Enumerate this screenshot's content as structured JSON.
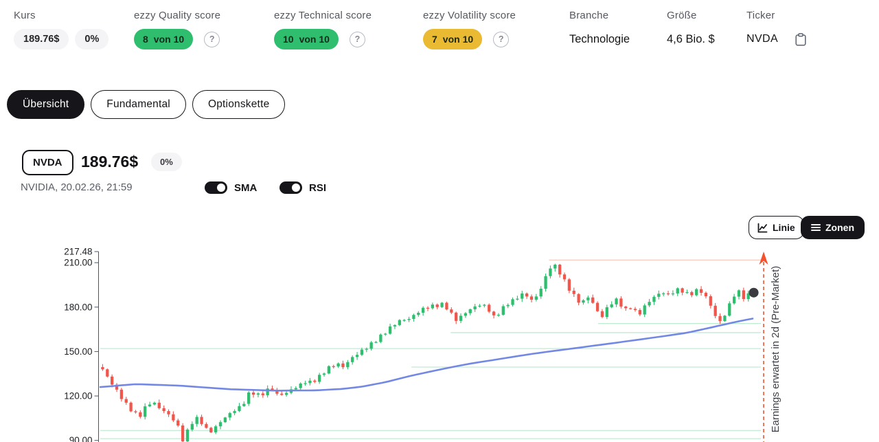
{
  "header": {
    "stats": [
      {
        "id": "kurs",
        "label": "Kurs",
        "kind": "price",
        "price": "189.76$",
        "change": "0%"
      },
      {
        "id": "quality",
        "label": "ezzy Quality score",
        "kind": "score",
        "value": "8",
        "suffix": "von 10",
        "color": "#2EBE6E",
        "help_icon": "?"
      },
      {
        "id": "technical",
        "label": "ezzy Technical score",
        "kind": "score",
        "value": "10",
        "suffix": "von 10",
        "color": "#2EBE6E",
        "help_icon": "?"
      },
      {
        "id": "volatility",
        "label": "ezzy Volatility score",
        "kind": "score",
        "value": "7",
        "suffix": "von 10",
        "color": "#EABA33",
        "help_icon": "?"
      },
      {
        "id": "branche",
        "label": "Branche",
        "kind": "text",
        "value": "Technologie"
      },
      {
        "id": "groesse",
        "label": "Größe",
        "kind": "text",
        "value": "4,6 Bio. $"
      },
      {
        "id": "ticker",
        "label": "Ticker",
        "kind": "ticker",
        "value": "NVDA"
      }
    ]
  },
  "tabs": [
    {
      "id": "uebersicht",
      "label": "Übersicht",
      "active": true
    },
    {
      "id": "fundamental",
      "label": "Fundamental",
      "active": false
    },
    {
      "id": "optionskette",
      "label": "Optionskette",
      "active": false
    }
  ],
  "symbol": {
    "ticker": "NVDA",
    "price": "189.76$",
    "change": "0%",
    "subtitle": "NVIDIA, 20.02.26, 21:59"
  },
  "toggles": [
    {
      "id": "sma",
      "label": "SMA",
      "on": true
    },
    {
      "id": "rsi",
      "label": "RSI",
      "on": true
    }
  ],
  "chart_buttons": {
    "line": "Linie",
    "zones": "Zonen"
  },
  "chart_data": {
    "type": "candlestick",
    "symbol": "NVDA",
    "y_ticks": [
      "217.48",
      "210.00",
      "180.00",
      "150.00",
      "120.00",
      "90.00"
    ],
    "y_tick_values": [
      217.48,
      210,
      180,
      150,
      120,
      90
    ],
    "visible_price_range": [
      88.3,
      217.48
    ],
    "candle_count": 139,
    "last_price": 189.76,
    "colors": {
      "up": "#2EBE6E",
      "down": "#F0564C",
      "sma": "#7288E4",
      "marker": "#3A3A40",
      "annotation": "#F4512C",
      "axis": "#4b5563",
      "zone_support": "rgba(46,190,110,0.30)",
      "zone_resistance": "rgba(244,81,44,0.32)"
    },
    "price_path": [
      [
        0,
        138
      ],
      [
        0.007,
        133
      ],
      [
        0.021,
        124
      ],
      [
        0.035,
        115
      ],
      [
        0.049,
        108
      ],
      [
        0.058,
        107
      ],
      [
        0.068,
        114
      ],
      [
        0.077,
        116
      ],
      [
        0.087,
        112
      ],
      [
        0.1,
        108
      ],
      [
        0.111,
        103
      ],
      [
        0.119,
        97
      ],
      [
        0.124,
        89
      ],
      [
        0.132,
        98
      ],
      [
        0.14,
        104
      ],
      [
        0.147,
        105
      ],
      [
        0.156,
        100
      ],
      [
        0.163,
        95
      ],
      [
        0.172,
        98
      ],
      [
        0.182,
        103
      ],
      [
        0.195,
        108
      ],
      [
        0.205,
        111
      ],
      [
        0.216,
        114
      ],
      [
        0.222,
        121
      ],
      [
        0.232,
        122
      ],
      [
        0.242,
        120
      ],
      [
        0.253,
        124
      ],
      [
        0.261,
        125
      ],
      [
        0.268,
        121
      ],
      [
        0.279,
        121
      ],
      [
        0.289,
        124
      ],
      [
        0.302,
        127
      ],
      [
        0.313,
        130
      ],
      [
        0.321,
        129
      ],
      [
        0.333,
        133
      ],
      [
        0.347,
        139
      ],
      [
        0.361,
        142
      ],
      [
        0.368,
        139
      ],
      [
        0.384,
        146
      ],
      [
        0.4,
        151
      ],
      [
        0.416,
        156
      ],
      [
        0.432,
        162
      ],
      [
        0.447,
        168
      ],
      [
        0.461,
        172
      ],
      [
        0.468,
        171
      ],
      [
        0.483,
        176
      ],
      [
        0.497,
        180
      ],
      [
        0.513,
        181
      ],
      [
        0.524,
        182
      ],
      [
        0.534,
        177
      ],
      [
        0.542,
        171
      ],
      [
        0.552,
        174
      ],
      [
        0.563,
        178
      ],
      [
        0.576,
        181
      ],
      [
        0.584,
        182
      ],
      [
        0.594,
        178
      ],
      [
        0.602,
        173
      ],
      [
        0.611,
        177
      ],
      [
        0.621,
        182
      ],
      [
        0.633,
        185
      ],
      [
        0.646,
        189
      ],
      [
        0.654,
        187
      ],
      [
        0.662,
        184
      ],
      [
        0.67,
        189
      ],
      [
        0.677,
        196
      ],
      [
        0.686,
        205
      ],
      [
        0.692,
        210
      ],
      [
        0.698,
        206
      ],
      [
        0.705,
        202
      ],
      [
        0.712,
        196
      ],
      [
        0.719,
        191
      ],
      [
        0.728,
        186
      ],
      [
        0.735,
        182
      ],
      [
        0.741,
        185
      ],
      [
        0.747,
        187
      ],
      [
        0.755,
        182
      ],
      [
        0.762,
        176
      ],
      [
        0.767,
        173
      ],
      [
        0.775,
        179
      ],
      [
        0.783,
        183
      ],
      [
        0.791,
        185
      ],
      [
        0.798,
        181
      ],
      [
        0.804,
        178
      ],
      [
        0.812,
        180
      ],
      [
        0.819,
        177
      ],
      [
        0.825,
        175
      ],
      [
        0.832,
        180
      ],
      [
        0.841,
        184
      ],
      [
        0.848,
        187
      ],
      [
        0.856,
        189
      ],
      [
        0.864,
        190
      ],
      [
        0.871,
        188
      ],
      [
        0.879,
        191
      ],
      [
        0.887,
        192
      ],
      [
        0.895,
        190
      ],
      [
        0.902,
        188
      ],
      [
        0.909,
        190
      ],
      [
        0.916,
        192
      ],
      [
        0.924,
        189
      ],
      [
        0.932,
        184
      ],
      [
        0.939,
        177
      ],
      [
        0.945,
        171
      ],
      [
        0.951,
        170
      ],
      [
        0.958,
        176
      ],
      [
        0.965,
        183
      ],
      [
        0.971,
        188
      ],
      [
        0.977,
        191
      ],
      [
        0.982,
        188
      ],
      [
        0.987,
        186
      ],
      [
        0.992,
        188
      ],
      [
        1,
        189.76
      ]
    ],
    "sma_path": [
      [
        0,
        126
      ],
      [
        0.055,
        128
      ],
      [
        0.12,
        127
      ],
      [
        0.2,
        124.5
      ],
      [
        0.27,
        123.6
      ],
      [
        0.33,
        123.8
      ],
      [
        0.37,
        124.8
      ],
      [
        0.4,
        126.3
      ],
      [
        0.435,
        129.3
      ],
      [
        0.476,
        133.8
      ],
      [
        0.52,
        138
      ],
      [
        0.56,
        141.5
      ],
      [
        0.61,
        145
      ],
      [
        0.66,
        148.5
      ],
      [
        0.72,
        152
      ],
      [
        0.78,
        155.5
      ],
      [
        0.83,
        158.5
      ],
      [
        0.87,
        161
      ],
      [
        0.895,
        162.6
      ],
      [
        0.93,
        166
      ],
      [
        0.97,
        170
      ],
      [
        1,
        172.6
      ]
    ],
    "zones": [
      {
        "price": 211.8,
        "kind": "resistance",
        "from": 0.685
      },
      {
        "price": 168.9,
        "kind": "support",
        "from": 0.76
      },
      {
        "price": 162.8,
        "kind": "support",
        "from": 0.535
      },
      {
        "price": 152.0,
        "kind": "support",
        "from": 0
      },
      {
        "price": 139.5,
        "kind": "support",
        "from": 0.475
      },
      {
        "price": 96.7,
        "kind": "support",
        "from": 0
      },
      {
        "price": 91.2,
        "kind": "support",
        "from": 0
      }
    ],
    "annotation": {
      "label": "Earnings erwartet in 2d (Pre-Market)"
    }
  }
}
